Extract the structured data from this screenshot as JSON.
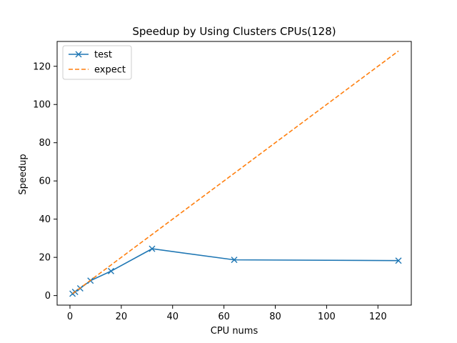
{
  "chart_data": {
    "type": "line",
    "title": "Speedup by Using Clusters CPUs(128)",
    "xlabel": "CPU nums",
    "ylabel": "Speedup",
    "xlim": [
      -5,
      133
    ],
    "ylim": [
      -5,
      133
    ],
    "xticks": [
      0,
      20,
      40,
      60,
      80,
      100,
      120
    ],
    "yticks": [
      0,
      20,
      40,
      60,
      80,
      100,
      120
    ],
    "grid": false,
    "legend": "top-left",
    "series": [
      {
        "name": "test",
        "color": "#1f77b4",
        "marker": "x",
        "linestyle": "solid",
        "x": [
          1,
          2,
          4,
          8,
          16,
          32,
          64,
          128
        ],
        "y": [
          1.0,
          1.9,
          3.8,
          7.8,
          12.8,
          24.5,
          18.7,
          18.3
        ]
      },
      {
        "name": "expect",
        "color": "#ff7f0e",
        "marker": "none",
        "linestyle": "dashed",
        "x": [
          1,
          2,
          4,
          8,
          16,
          32,
          64,
          128
        ],
        "y": [
          1,
          2,
          4,
          8,
          16,
          32,
          64,
          128
        ]
      }
    ]
  }
}
